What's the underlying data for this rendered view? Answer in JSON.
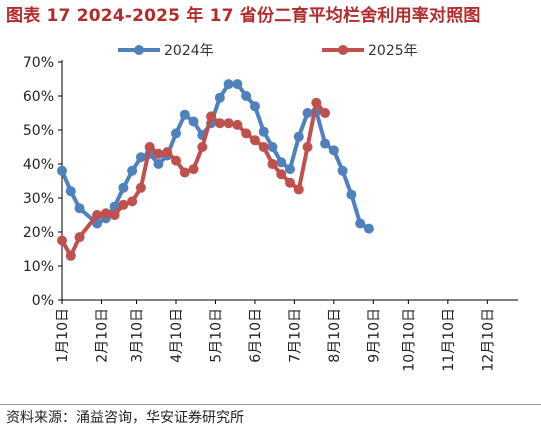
{
  "title": "图表 17 2024-2025 年 17 省份二育平均栏舍利用率对照图",
  "source": "资料来源：涌益咨询，华安证券研究所",
  "chart_data": {
    "type": "line",
    "xlabel": "",
    "ylabel": "",
    "ylim": [
      0,
      70
    ],
    "yticks": [
      "0%",
      "10%",
      "20%",
      "30%",
      "40%",
      "50%",
      "60%",
      "70%"
    ],
    "xlim": [
      1,
      53
    ],
    "xticks": [
      {
        "label": "1月10日",
        "x": 1
      },
      {
        "label": "2月10日",
        "x": 5.5
      },
      {
        "label": "3月10日",
        "x": 9.5
      },
      {
        "label": "4月10日",
        "x": 14
      },
      {
        "label": "5月10日",
        "x": 18.5
      },
      {
        "label": "6月10日",
        "x": 23
      },
      {
        "label": "7月10日",
        "x": 27.5
      },
      {
        "label": "8月10日",
        "x": 32
      },
      {
        "label": "9月10日",
        "x": 36.5
      },
      {
        "label": "10月10日",
        "x": 40.5
      },
      {
        "label": "11月10日",
        "x": 45
      },
      {
        "label": "12月10日",
        "x": 49.5
      }
    ],
    "legend_position": "top",
    "series": [
      {
        "name": "2024年",
        "color": "#4f81bd",
        "points": [
          [
            1,
            38
          ],
          [
            2,
            32
          ],
          [
            3,
            27
          ],
          [
            5,
            22.5
          ],
          [
            6,
            24
          ],
          [
            7,
            27.5
          ],
          [
            8,
            33
          ],
          [
            9,
            38
          ],
          [
            10,
            42
          ],
          [
            11,
            43
          ],
          [
            12,
            40
          ],
          [
            13,
            42.5
          ],
          [
            14,
            49
          ],
          [
            15,
            54.5
          ],
          [
            16,
            52.5
          ],
          [
            17,
            48.5
          ],
          [
            18,
            52
          ],
          [
            19,
            59.5
          ],
          [
            20,
            63.5
          ],
          [
            21,
            63.5
          ],
          [
            22,
            60
          ],
          [
            23,
            57
          ],
          [
            24,
            49.5
          ],
          [
            25,
            45
          ],
          [
            26,
            40.5
          ],
          [
            27,
            38.5
          ],
          [
            28,
            48
          ],
          [
            29,
            55
          ],
          [
            30,
            55.5
          ],
          [
            31,
            46
          ],
          [
            32,
            44
          ],
          [
            33,
            38
          ],
          [
            34,
            31
          ],
          [
            35,
            22.5
          ],
          [
            36,
            21
          ]
        ]
      },
      {
        "name": "2025年",
        "color": "#c0504d",
        "points": [
          [
            1,
            17.5
          ],
          [
            2,
            13
          ],
          [
            3,
            18.5
          ],
          [
            5,
            25
          ],
          [
            6,
            25.5
          ],
          [
            7,
            25
          ],
          [
            8,
            28
          ],
          [
            9,
            29
          ],
          [
            10,
            33
          ],
          [
            11,
            45
          ],
          [
            12,
            43
          ],
          [
            13,
            43.5
          ],
          [
            14,
            41
          ],
          [
            15,
            37.5
          ],
          [
            16,
            38.5
          ],
          [
            17,
            45
          ],
          [
            18,
            54
          ],
          [
            19,
            52
          ],
          [
            20,
            52
          ],
          [
            21,
            51.5
          ],
          [
            22,
            49
          ],
          [
            23,
            47
          ],
          [
            24,
            45
          ],
          [
            25,
            40
          ],
          [
            26,
            37
          ],
          [
            27,
            34.5
          ],
          [
            28,
            32.5
          ],
          [
            29,
            45
          ],
          [
            30,
            58
          ],
          [
            31,
            55
          ]
        ]
      }
    ]
  }
}
